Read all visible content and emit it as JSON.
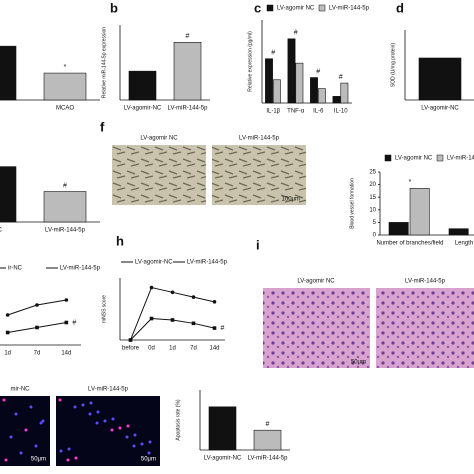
{
  "chart_data": [
    {
      "type": "bar",
      "categories": [
        null,
        "MCAO"
      ],
      "values": [
        1.0,
        0.5
      ],
      "colors": [
        "#111111",
        "#bbbbbb"
      ],
      "ylim": [
        0,
        1.3
      ],
      "annotations": [
        null,
        "*"
      ]
    },
    {
      "type": "bar",
      "ylabel": "Relative miR-144-5p expression",
      "categories": [
        "LV-agomir-NC",
        "LV-miR-144-5p"
      ],
      "values": [
        1.0,
        2.0
      ],
      "colors": [
        "#111111",
        "#bbbbbb"
      ],
      "ylim": [
        0,
        2.6
      ],
      "annotations": [
        null,
        "#"
      ]
    },
    {
      "type": "bar",
      "ylabel": "Relative expression (pg/ml)",
      "categories": [
        "IL-1β",
        "TNF-α",
        "IL-6",
        "IL-10"
      ],
      "series": [
        {
          "name": "LV-agomir NC",
          "color": "#111111",
          "values": [
            160,
            232,
            92,
            24
          ]
        },
        {
          "name": "LV-miR-144-5p",
          "color": "#bbbbbb",
          "values": [
            84,
            144,
            52,
            72
          ]
        }
      ],
      "ylim": [
        0,
        300
      ],
      "annotations": [
        "#",
        "#",
        "#",
        "#"
      ]
    },
    {
      "type": "bar",
      "ylabel": "SOD (U/mg protein)",
      "categories": [
        "LV-agomir-NC"
      ],
      "values": [
        48
      ],
      "colors": [
        "#111111"
      ],
      "ylim": [
        0,
        80
      ]
    },
    {
      "type": "bar",
      "categories": [
        "ir-NC",
        "LV-miR-144-5p"
      ],
      "values": [
        1.0,
        0.55
      ],
      "colors": [
        "#111111",
        "#bbbbbb"
      ],
      "ylim": [
        0,
        1.3
      ],
      "annotations": [
        null,
        "#"
      ]
    },
    {
      "type": "bar",
      "ylabel": "Blood vessel formation",
      "categories": [
        "Number of branches/field",
        "Length of tr"
      ],
      "series": [
        {
          "name": "LV-agomir NC",
          "color": "#111111",
          "values": [
            5,
            2.5
          ]
        },
        {
          "name": "LV-miR-144-5p",
          "color": "#bbbbbb",
          "values": [
            18.5,
            null
          ]
        }
      ],
      "ylim": [
        0,
        25
      ],
      "yticks": [
        0,
        5,
        10,
        15,
        20,
        25
      ],
      "annotations": [
        "*",
        null
      ]
    },
    {
      "type": "line",
      "categories": [
        "1d",
        "7d",
        "14d"
      ],
      "series": [
        {
          "name": "ir-NC",
          "color": "#111111",
          "values": [
            6,
            8,
            9
          ]
        },
        {
          "name": "LV-miR-144-5p",
          "color": "#111111",
          "values": [
            2.5,
            3.5,
            4.5
          ]
        }
      ],
      "ylim": [
        0,
        12
      ],
      "annotations": [
        "#"
      ]
    },
    {
      "type": "line",
      "ylabel": "mNSS score",
      "categories": [
        "before",
        "0d",
        "1d",
        "7d",
        "14d"
      ],
      "series": [
        {
          "name": "LV-agomir-NC",
          "color": "#111111",
          "values": [
            0,
            11,
            10,
            9,
            8
          ]
        },
        {
          "name": "LV-miR-144-5p",
          "color": "#111111",
          "values": [
            0,
            4.5,
            4.2,
            3.5,
            2.5
          ]
        }
      ],
      "ylim": [
        0,
        13
      ],
      "annotations": [
        "#"
      ]
    },
    {
      "type": "bar",
      "ylabel": "Apoptosis rate (%)",
      "categories": [
        "LV-agomir-NC",
        "LV-miR-144-5p"
      ],
      "values": [
        72,
        33
      ],
      "colors": [
        "#111111",
        "#bbbbbb"
      ],
      "ylim": [
        0,
        100
      ],
      "annotations": [
        null,
        "#"
      ]
    }
  ],
  "panels": {
    "letters": [
      "b",
      "c",
      "d",
      "f",
      "h",
      "i"
    ],
    "f_images": [
      "LV-agomir NC",
      "LV-miR-144-5p",
      "100μm"
    ],
    "i_images": [
      "LV-agomir NC",
      "LV-miR-144-5p",
      "50μm"
    ],
    "j_images": [
      "mir-NC",
      "LV-miR-144-5p",
      "50μm",
      "50μm"
    ]
  }
}
